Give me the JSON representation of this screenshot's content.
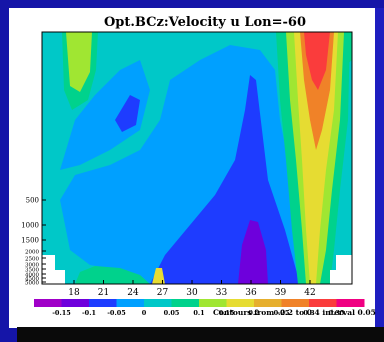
{
  "chart_data": {
    "type": "heatmap",
    "title": "Opt.BCz:Velocity u Lon=-60",
    "x_ticks": [
      "18",
      "21",
      "24",
      "27",
      "30",
      "33",
      "36",
      "39",
      "42"
    ],
    "y_ticks": [
      "500",
      "1000",
      "1500",
      "2000",
      "2500",
      "3000",
      "3500",
      "4000",
      "4500",
      "5000"
    ],
    "colorbar_labels": [
      "-0.15",
      "-0.1",
      "-0.05",
      "0",
      "0.05",
      "0.1",
      "0.15",
      "0.2",
      "0.25",
      "0.3",
      "0.35"
    ],
    "colorbar_colors": [
      "#a000c8",
      "#6e00dc",
      "#1e3cff",
      "#00a0ff",
      "#00c8c8",
      "#00d28c",
      "#a0e632",
      "#e6dc32",
      "#e6af2d",
      "#f08228",
      "#fa3c3c",
      "#f00082"
    ],
    "contour_note": "Contours from -0.2 to 0.4 interval 0.05",
    "fields": {
      "background": "#00c8c8",
      "deep_blue": "#1e3cff",
      "light_blue": "#00a0ff",
      "purple": "#6e00dc",
      "green": "#00d28c",
      "light_green": "#a0e632",
      "yellow": "#e6dc32",
      "orange": "#f08228",
      "red": "#fa3c3c"
    }
  }
}
